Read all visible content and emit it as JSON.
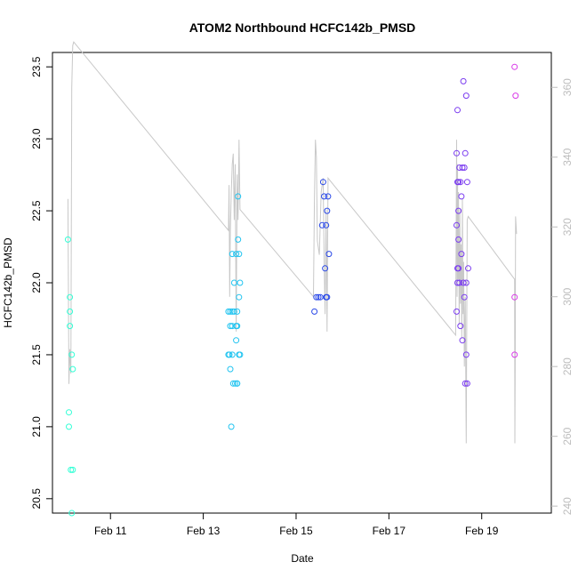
{
  "chart_data": {
    "type": "scatter",
    "title": "ATOM2 Northbound HCFC142b_PMSD",
    "xlabel": "Date",
    "ylabel": "HCFC142b_PMSD",
    "xlim": [
      "2016-02-09 18:00",
      "2016-02-20 12:00"
    ],
    "ylim": [
      20.4,
      23.6
    ],
    "y2lim": [
      238,
      370
    ],
    "x_ticks": [
      {
        "date": "2016-02-11",
        "label": "Feb 11"
      },
      {
        "date": "2016-02-13",
        "label": "Feb 13"
      },
      {
        "date": "2016-02-15",
        "label": "Feb 15"
      },
      {
        "date": "2016-02-17",
        "label": "Feb 17"
      },
      {
        "date": "2016-02-19",
        "label": "Feb 19"
      }
    ],
    "y_ticks": [
      20.5,
      21.0,
      21.5,
      22.0,
      22.5,
      23.0,
      23.5
    ],
    "y2_ticks": [
      240,
      260,
      280,
      300,
      320,
      340,
      360
    ],
    "colors": {
      "flight1": "#33ffd6",
      "flight2": "#22c4f0",
      "flight3": "#2a49e8",
      "flight4": "#7b3cf0",
      "flight5": "#d93ae8",
      "secondary_line": "#c8c8c8",
      "secondary_axis": "#bdbdbd"
    },
    "series": [
      {
        "color_key": "flight1",
        "points": [
          [
            "2016-02-10 02:00",
            22.3
          ],
          [
            "2016-02-10 02:30",
            21.1
          ],
          [
            "2016-02-10 02:30",
            21.0
          ],
          [
            "2016-02-10 03:00",
            21.9
          ],
          [
            "2016-02-10 03:00",
            21.8
          ],
          [
            "2016-02-10 03:00",
            21.7
          ],
          [
            "2016-02-10 03:30",
            20.7
          ],
          [
            "2016-02-10 04:00",
            21.5
          ],
          [
            "2016-02-10 04:00",
            20.4
          ],
          [
            "2016-02-10 04:30",
            21.4
          ],
          [
            "2016-02-10 04:30",
            20.7
          ]
        ]
      },
      {
        "color_key": "flight2",
        "points": [
          [
            "2016-02-13 13:00",
            21.5
          ],
          [
            "2016-02-13 13:00",
            21.8
          ],
          [
            "2016-02-13 13:30",
            21.5
          ],
          [
            "2016-02-13 14:00",
            21.4
          ],
          [
            "2016-02-13 14:00",
            21.7
          ],
          [
            "2016-02-13 14:00",
            21.8
          ],
          [
            "2016-02-13 14:30",
            21.0
          ],
          [
            "2016-02-13 15:00",
            22.2
          ],
          [
            "2016-02-13 15:00",
            21.7
          ],
          [
            "2016-02-13 15:00",
            21.5
          ],
          [
            "2016-02-13 15:00",
            21.8
          ],
          [
            "2016-02-13 15:30",
            21.3
          ],
          [
            "2016-02-13 16:00",
            22.0
          ],
          [
            "2016-02-13 16:00",
            21.8
          ],
          [
            "2016-02-13 16:30",
            21.3
          ],
          [
            "2016-02-13 17:00",
            21.7
          ],
          [
            "2016-02-13 17:00",
            22.2
          ],
          [
            "2016-02-13 17:00",
            21.6
          ],
          [
            "2016-02-13 17:30",
            21.8
          ],
          [
            "2016-02-13 17:30",
            21.3
          ],
          [
            "2016-02-13 17:30",
            21.7
          ],
          [
            "2016-02-13 17:30",
            21.3
          ],
          [
            "2016-02-13 18:00",
            22.3
          ],
          [
            "2016-02-13 18:00",
            22.6
          ],
          [
            "2016-02-13 18:30",
            21.9
          ],
          [
            "2016-02-13 18:30",
            21.5
          ],
          [
            "2016-02-13 18:30",
            22.2
          ],
          [
            "2016-02-13 19:00",
            22.0
          ],
          [
            "2016-02-13 19:00",
            21.5
          ]
        ]
      },
      {
        "color_key": "flight3",
        "points": [
          [
            "2016-02-15 09:30",
            21.8
          ],
          [
            "2016-02-15 10:30",
            21.9
          ],
          [
            "2016-02-15 11:30",
            21.9
          ],
          [
            "2016-02-15 12:30",
            21.9
          ],
          [
            "2016-02-15 13:30",
            22.4
          ],
          [
            "2016-02-15 14:00",
            22.7
          ],
          [
            "2016-02-15 14:30",
            22.6
          ],
          [
            "2016-02-15 15:00",
            22.1
          ],
          [
            "2016-02-15 15:30",
            21.9
          ],
          [
            "2016-02-15 15:30",
            22.4
          ],
          [
            "2016-02-15 16:00",
            22.5
          ],
          [
            "2016-02-15 16:00",
            21.9
          ],
          [
            "2016-02-15 16:30",
            22.6
          ],
          [
            "2016-02-15 17:00",
            22.2
          ]
        ]
      },
      {
        "color_key": "flight4",
        "points": [
          [
            "2016-02-18 11:00",
            22.9
          ],
          [
            "2016-02-18 11:00",
            22.4
          ],
          [
            "2016-02-18 11:00",
            21.8
          ],
          [
            "2016-02-18 11:30",
            23.2
          ],
          [
            "2016-02-18 11:30",
            22.7
          ],
          [
            "2016-02-18 11:30",
            22.1
          ],
          [
            "2016-02-18 11:30",
            22.0
          ],
          [
            "2016-02-18 12:00",
            22.3
          ],
          [
            "2016-02-18 12:00",
            22.5
          ],
          [
            "2016-02-18 12:00",
            22.7
          ],
          [
            "2016-02-18 12:00",
            22.1
          ],
          [
            "2016-02-18 12:30",
            22.8
          ],
          [
            "2016-02-18 12:30",
            22.0
          ],
          [
            "2016-02-18 13:00",
            21.7
          ],
          [
            "2016-02-18 13:00",
            22.7
          ],
          [
            "2016-02-18 13:30",
            22.6
          ],
          [
            "2016-02-18 13:30",
            22.2
          ],
          [
            "2016-02-18 14:00",
            22.8
          ],
          [
            "2016-02-18 14:00",
            21.6
          ],
          [
            "2016-02-18 14:30",
            22.0
          ],
          [
            "2016-02-18 14:30",
            23.4
          ],
          [
            "2016-02-18 15:00",
            21.9
          ],
          [
            "2016-02-18 15:00",
            22.8
          ],
          [
            "2016-02-18 15:30",
            21.3
          ],
          [
            "2016-02-18 15:30",
            22.9
          ],
          [
            "2016-02-18 16:00",
            23.3
          ],
          [
            "2016-02-18 16:00",
            22.0
          ],
          [
            "2016-02-18 16:00",
            21.5
          ],
          [
            "2016-02-18 16:30",
            21.3
          ],
          [
            "2016-02-18 16:30",
            22.7
          ],
          [
            "2016-02-18 17:00",
            22.1
          ]
        ]
      },
      {
        "color_key": "flight5",
        "points": [
          [
            "2016-02-19 17:00",
            23.5
          ],
          [
            "2016-02-19 17:00",
            21.9
          ],
          [
            "2016-02-19 17:00",
            21.5
          ],
          [
            "2016-02-19 17:30",
            23.3
          ]
        ]
      }
    ],
    "secondary_line": [
      [
        "2016-02-10 02:00",
        328
      ],
      [
        "2016-02-10 02:30",
        275
      ],
      [
        "2016-02-10 03:00",
        285
      ],
      [
        "2016-02-10 03:30",
        278
      ],
      [
        "2016-02-10 04:00",
        360
      ],
      [
        "2016-02-10 04:30",
        372
      ],
      [
        "2016-02-10 05:00",
        373
      ],
      [
        "2016-02-13 13:00",
        319
      ],
      [
        "2016-02-13 13:20",
        332
      ],
      [
        "2016-02-13 13:40",
        300
      ],
      [
        "2016-02-13 14:00",
        318
      ],
      [
        "2016-02-13 14:30",
        330
      ],
      [
        "2016-02-13 15:00",
        338
      ],
      [
        "2016-02-13 15:30",
        341
      ],
      [
        "2016-02-13 16:00",
        322
      ],
      [
        "2016-02-13 16:30",
        338
      ],
      [
        "2016-02-13 17:00",
        290
      ],
      [
        "2016-02-13 17:30",
        335
      ],
      [
        "2016-02-13 18:00",
        322
      ],
      [
        "2016-02-13 18:30",
        345
      ],
      [
        "2016-02-13 19:00",
        325
      ],
      [
        "2016-02-15 09:00",
        300
      ],
      [
        "2016-02-15 09:30",
        328
      ],
      [
        "2016-02-15 10:00",
        345
      ],
      [
        "2016-02-15 10:30",
        340
      ],
      [
        "2016-02-15 11:00",
        316
      ],
      [
        "2016-02-15 12:00",
        312
      ],
      [
        "2016-02-15 13:00",
        330
      ],
      [
        "2016-02-15 14:00",
        334
      ],
      [
        "2016-02-15 14:30",
        310
      ],
      [
        "2016-02-15 15:00",
        295
      ],
      [
        "2016-02-15 15:30",
        325
      ],
      [
        "2016-02-15 16:00",
        290
      ],
      [
        "2016-02-15 16:30",
        334
      ],
      [
        "2016-02-18 10:30",
        289
      ],
      [
        "2016-02-18 11:00",
        345
      ],
      [
        "2016-02-18 11:15",
        300
      ],
      [
        "2016-02-18 11:30",
        338
      ],
      [
        "2016-02-18 11:45",
        305
      ],
      [
        "2016-02-18 12:00",
        330
      ],
      [
        "2016-02-18 12:20",
        292
      ],
      [
        "2016-02-18 12:40",
        325
      ],
      [
        "2016-02-18 13:00",
        298
      ],
      [
        "2016-02-18 13:20",
        315
      ],
      [
        "2016-02-18 13:40",
        288
      ],
      [
        "2016-02-18 14:00",
        328
      ],
      [
        "2016-02-18 14:20",
        295
      ],
      [
        "2016-02-18 14:40",
        310
      ],
      [
        "2016-02-18 15:00",
        280
      ],
      [
        "2016-02-18 15:30",
        300
      ],
      [
        "2016-02-18 16:00",
        258
      ],
      [
        "2016-02-18 16:30",
        322
      ],
      [
        "2016-02-18 17:00",
        323
      ],
      [
        "2016-02-19 17:00",
        305
      ],
      [
        "2016-02-19 17:10",
        258
      ],
      [
        "2016-02-19 17:20",
        280
      ],
      [
        "2016-02-19 17:30",
        323
      ],
      [
        "2016-02-19 18:00",
        318
      ]
    ]
  }
}
